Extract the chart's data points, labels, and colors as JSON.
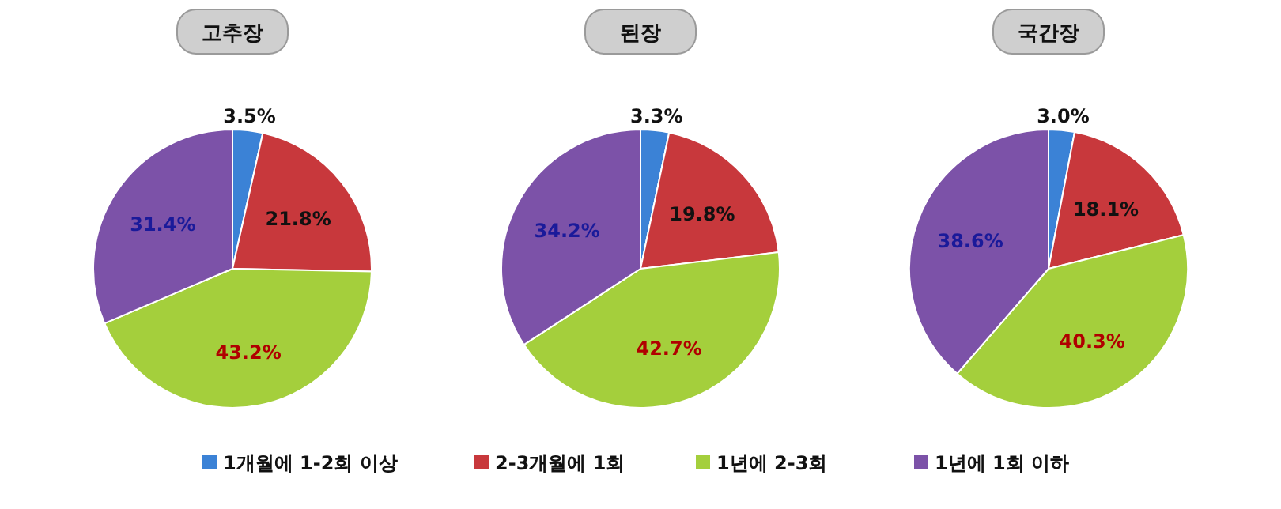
{
  "chart_data": [
    {
      "type": "pie",
      "title": "고추장",
      "categories": [
        "1개월에 1-2회 이상",
        "2-3개월에 1회",
        "1년에 2-3회",
        "1년에 1회 이하"
      ],
      "values": [
        3.5,
        21.8,
        43.2,
        31.4
      ],
      "value_labels": [
        "3.5%",
        "21.8%",
        "43.2%",
        "31.4%"
      ],
      "colors": [
        "#3b82d6",
        "#c8383c",
        "#a4cf3c",
        "#7c52a8"
      ],
      "legend": "bottom"
    },
    {
      "type": "pie",
      "title": "된장",
      "categories": [
        null,
        null,
        null,
        null
      ],
      "values": [
        3.3,
        19.8,
        42.7,
        34.2
      ],
      "value_labels": [
        "3.3%",
        "19.8%",
        "42.7%",
        "34.2%"
      ],
      "colors": [
        "#3b82d6",
        "#c8383c",
        "#a4cf3c",
        "#7c52a8"
      ]
    },
    {
      "type": "pie",
      "title": "국간장",
      "categories": [
        null,
        null,
        null,
        null
      ],
      "values": [
        3.0,
        18.1,
        40.3,
        38.6
      ],
      "value_labels": [
        "3.0%",
        "18.1%",
        "40.3%",
        "38.6%"
      ],
      "colors": [
        "#3b82d6",
        "#c8383c",
        "#a4cf3c",
        "#7c52a8"
      ]
    }
  ]
}
